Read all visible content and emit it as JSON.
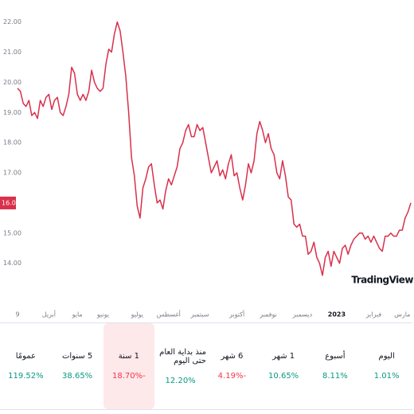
{
  "chart_data": {
    "type": "line",
    "series": [
      {
        "color": "#d9304b",
        "values": [
          19.8,
          19.7,
          19.3,
          19.2,
          19.4,
          18.9,
          19.0,
          18.8,
          19.4,
          19.2,
          19.5,
          19.6,
          19.1,
          19.4,
          19.5,
          19.0,
          18.9,
          19.2,
          19.6,
          20.5,
          20.3,
          19.6,
          19.4,
          19.6,
          19.4,
          19.7,
          20.4,
          20.0,
          19.8,
          19.7,
          19.8,
          20.6,
          21.1,
          21.0,
          21.6,
          22.0,
          21.7,
          21.0,
          20.2,
          19.0,
          17.5,
          16.9,
          15.9,
          15.5,
          16.5,
          16.8,
          17.2,
          17.3,
          16.6,
          16.0,
          16.1,
          15.8,
          16.4,
          16.8,
          16.6,
          16.9,
          17.2,
          17.8,
          18.0,
          18.4,
          18.6,
          18.2,
          18.2,
          18.6,
          18.4,
          18.5,
          18.0,
          17.5,
          17.0,
          17.2,
          17.4,
          16.9,
          17.1,
          16.8,
          17.3,
          17.6,
          16.9,
          17.0,
          16.5,
          16.1,
          16.6,
          17.3,
          17.0,
          17.4,
          18.3,
          18.7,
          18.4,
          18.0,
          18.3,
          17.8,
          17.6,
          17.0,
          16.8,
          17.4,
          16.9,
          16.2,
          16.1,
          15.3,
          15.2,
          15.3,
          14.9,
          14.9,
          14.3,
          14.4,
          14.7,
          14.2,
          14.0,
          13.6,
          14.2,
          14.4,
          13.9,
          14.4,
          14.2,
          14.0,
          14.5,
          14.6,
          14.3,
          14.6,
          14.8,
          14.9,
          15.0,
          15.0,
          14.8,
          14.9,
          14.7,
          14.9,
          14.7,
          14.5,
          14.4,
          14.9,
          14.9,
          15.0,
          14.9,
          14.9,
          15.1,
          15.1,
          15.5,
          15.7,
          16.0
        ]
      }
    ],
    "ylim": [
      12.7,
      22.2
    ],
    "yticks": [
      {
        "value": 22,
        "label": "22.00"
      },
      {
        "value": 21,
        "label": "21.00"
      },
      {
        "value": 20,
        "label": "20.00"
      },
      {
        "value": 19,
        "label": "19.00"
      },
      {
        "value": 18,
        "label": "18.00"
      },
      {
        "value": 17,
        "label": "17.00"
      },
      {
        "value": 15,
        "label": "15.00"
      },
      {
        "value": 14,
        "label": "14.00"
      }
    ],
    "price_label": {
      "value": 16,
      "label": "16.00"
    },
    "xticks": [
      {
        "value": 0,
        "label": "9"
      },
      {
        "value": 11,
        "label": "أبريل"
      },
      {
        "value": 21,
        "label": "مايو"
      },
      {
        "value": 30,
        "label": "يونيو"
      },
      {
        "value": 42,
        "label": "يوليو"
      },
      {
        "value": 53,
        "label": "أغسطس"
      },
      {
        "value": 64,
        "label": "سبتمبر"
      },
      {
        "value": 77,
        "label": "أكتوبر"
      },
      {
        "value": 88,
        "label": "نوفمبر"
      },
      {
        "value": 100,
        "label": "ديسمبر"
      },
      {
        "value": 112,
        "label": "2023"
      },
      {
        "value": 125,
        "label": "فبراير"
      },
      {
        "value": 135,
        "label": "مارس"
      }
    ],
    "watermark": "TradingView"
  },
  "performance": [
    {
      "period": "اليوم",
      "change": "1.01%",
      "direction": "up"
    },
    {
      "period": "أسبوع",
      "change": "8.11%",
      "direction": "up"
    },
    {
      "period": "1 شهر",
      "change": "10.65%",
      "direction": "up"
    },
    {
      "period": "6 شهر",
      "change": "4.19%-",
      "direction": "down"
    },
    {
      "period": "منذ بداية العام حتى اليوم",
      "change": "12.20%",
      "direction": "up"
    },
    {
      "period": "1 سنة",
      "change": "18.70%-",
      "direction": "down",
      "selected": true
    },
    {
      "period": "5 سنوات",
      "change": "38.65%",
      "direction": "up"
    },
    {
      "period": "عمومًا",
      "change": "119.52%",
      "direction": "up"
    }
  ]
}
